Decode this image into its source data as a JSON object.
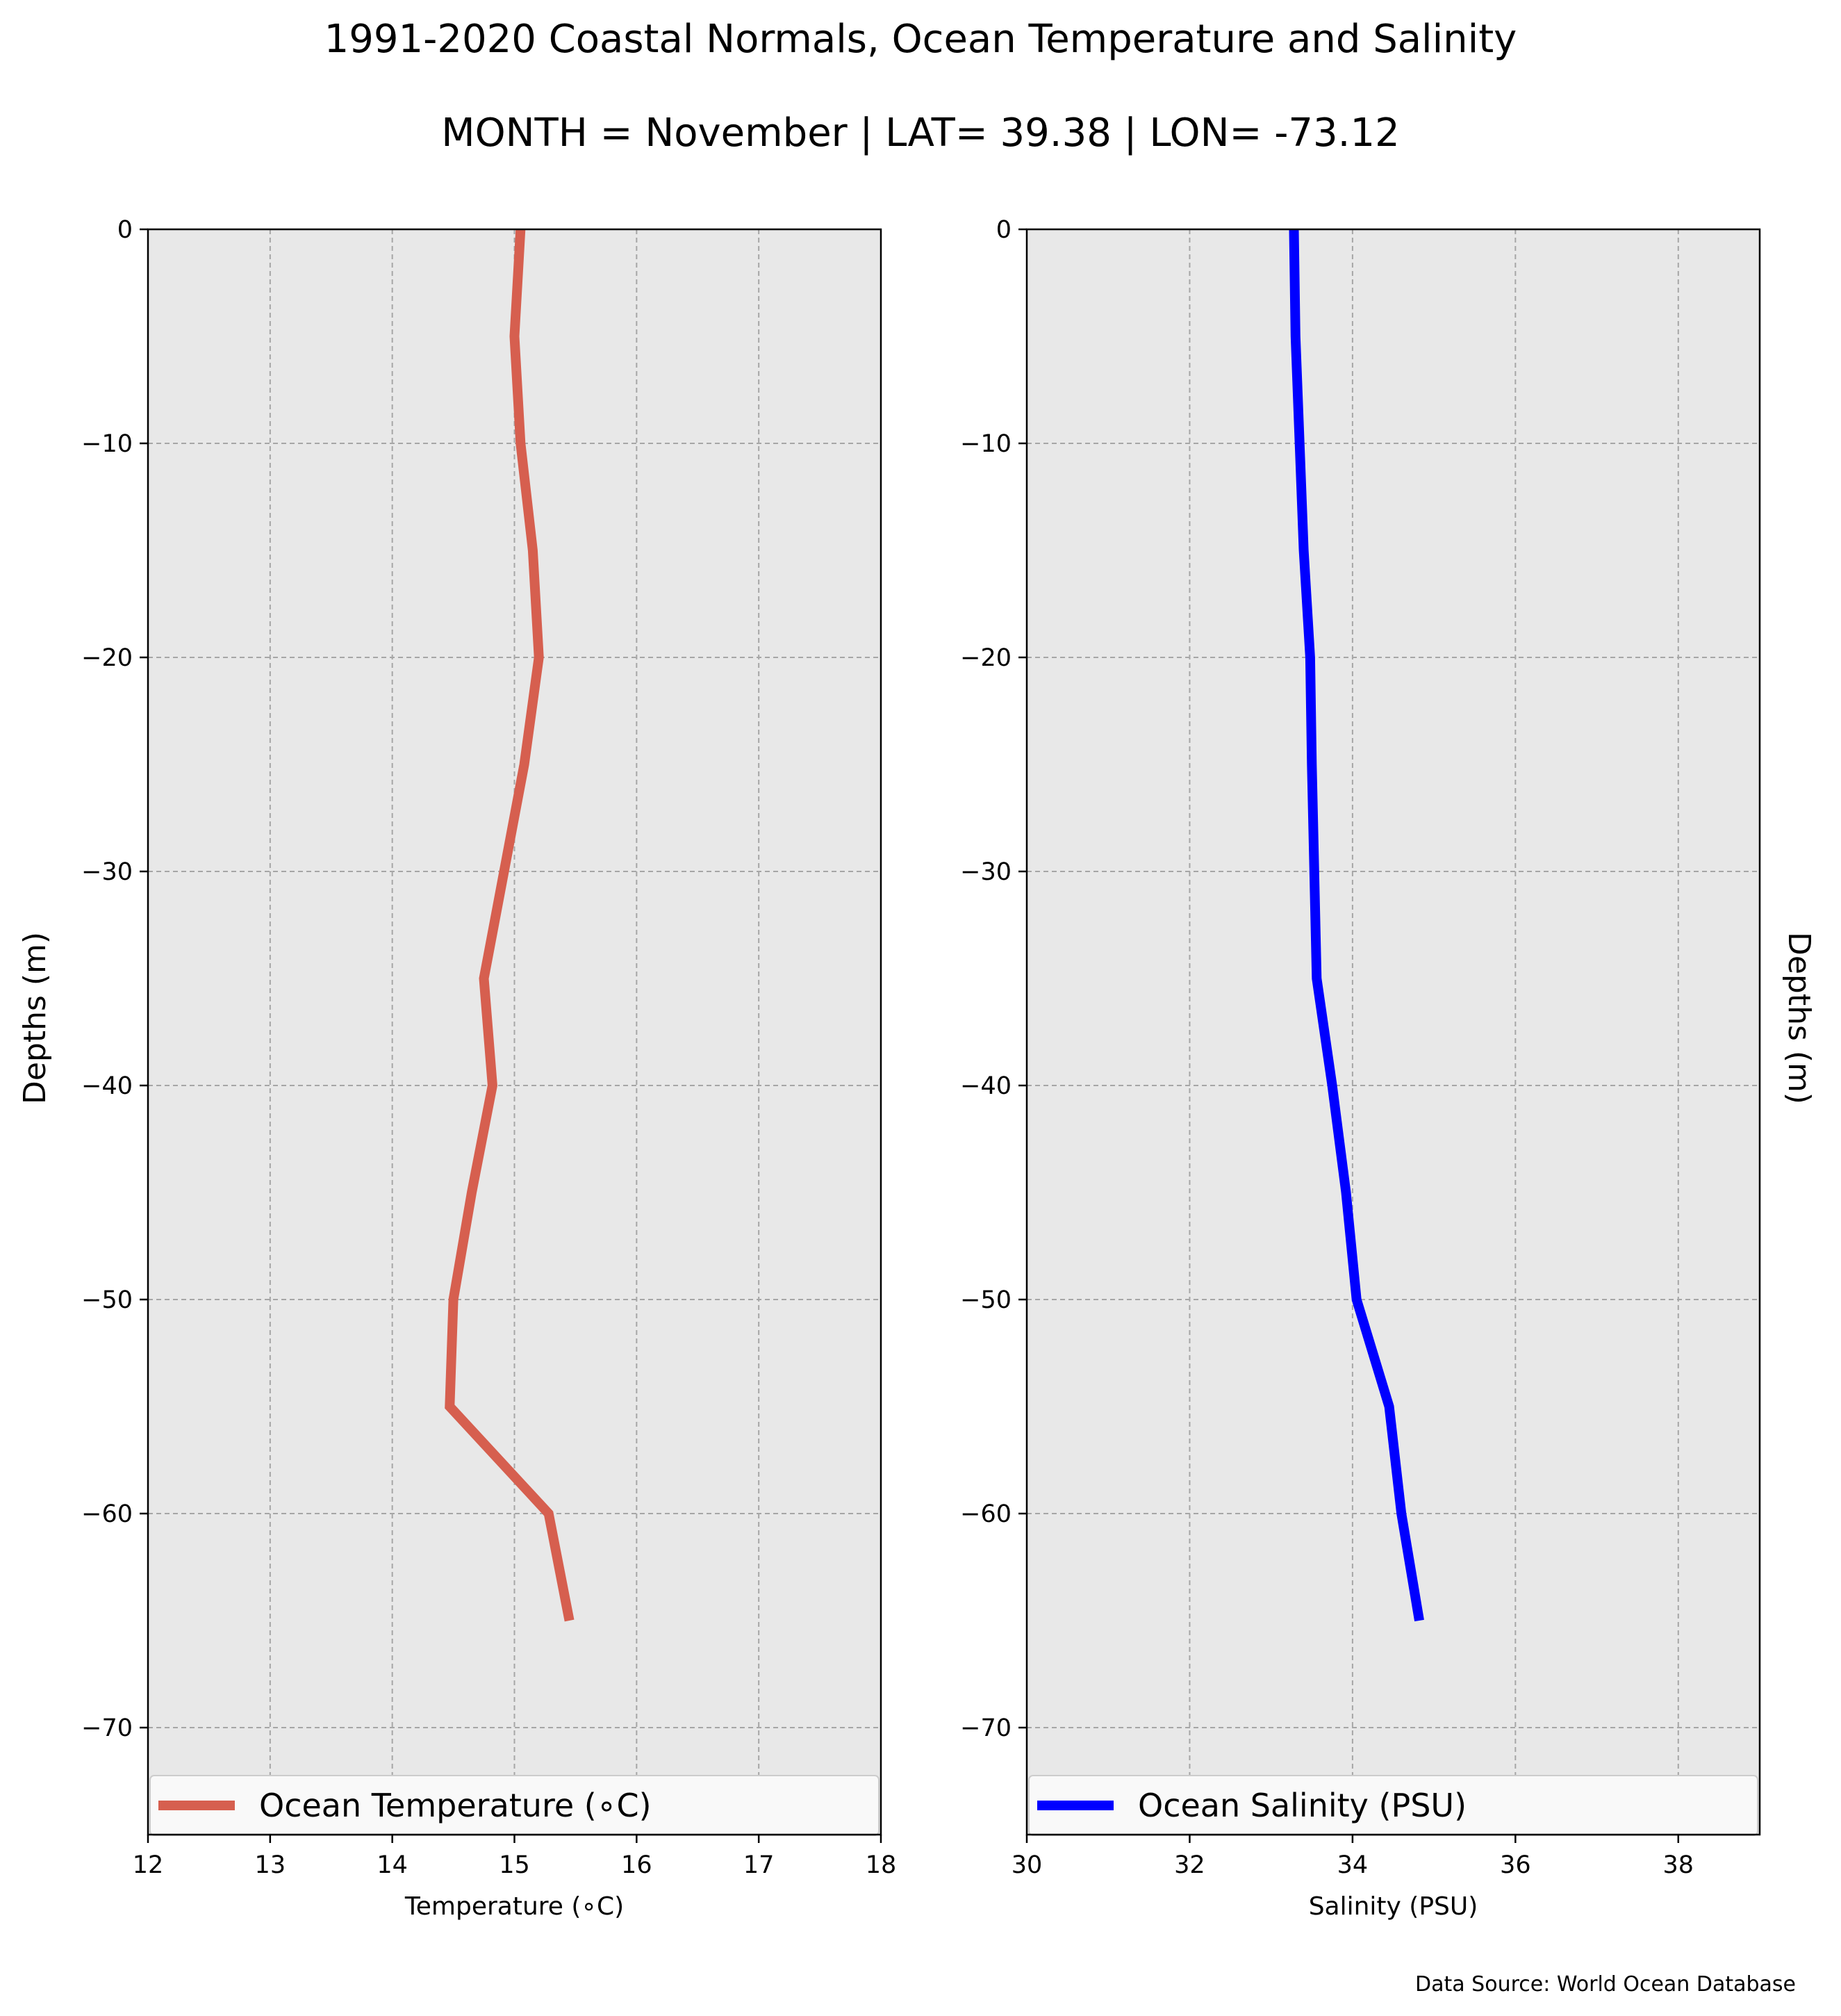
{
  "title": "1991-2020 Coastal Normals, Ocean Temperature and Salinity",
  "subtitle": "MONTH = November | LAT= 39.38 | LON= -73.12",
  "source": "Data Source: World Ocean Database",
  "chart_data": [
    {
      "type": "line",
      "xlabel": "Temperature (∘C)",
      "ylabel": "Depths (m)",
      "xlim": [
        12,
        18
      ],
      "ylim": [
        -75,
        0
      ],
      "xticks": [
        12,
        13,
        14,
        15,
        16,
        17,
        18
      ],
      "yticks": [
        0,
        -10,
        -20,
        -30,
        -40,
        -50,
        -60,
        -70
      ],
      "grid": true,
      "legend_position": "bottom",
      "series": [
        {
          "name": "Ocean Temperature (∘C)",
          "color": "#d65f4f",
          "x": [
            15.05,
            15.0,
            15.05,
            15.15,
            15.2,
            15.08,
            14.75,
            14.82,
            14.65,
            14.5,
            14.47,
            15.28,
            15.45
          ],
          "y": [
            0,
            -5,
            -10,
            -15,
            -20,
            -25,
            -35,
            -40,
            -45,
            -50,
            -55,
            -60,
            -65
          ]
        }
      ]
    },
    {
      "type": "line",
      "xlabel": "Salinity (PSU)",
      "ylabel": "Depths (m)",
      "xlim": [
        30,
        39
      ],
      "ylim": [
        -75,
        0
      ],
      "xticks": [
        30,
        32,
        34,
        36,
        38
      ],
      "yticks": [
        0,
        -10,
        -20,
        -30,
        -40,
        -50,
        -60,
        -70
      ],
      "grid": true,
      "legend_position": "bottom",
      "series": [
        {
          "name": "Ocean Salinity (PSU)",
          "color": "#0000ff",
          "x": [
            33.28,
            33.3,
            33.35,
            33.4,
            33.48,
            33.5,
            33.56,
            33.75,
            33.92,
            34.05,
            34.45,
            34.6,
            34.82
          ],
          "y": [
            0,
            -5,
            -10,
            -15,
            -20,
            -25,
            -35,
            -40,
            -45,
            -50,
            -55,
            -60,
            -65
          ]
        }
      ]
    }
  ]
}
